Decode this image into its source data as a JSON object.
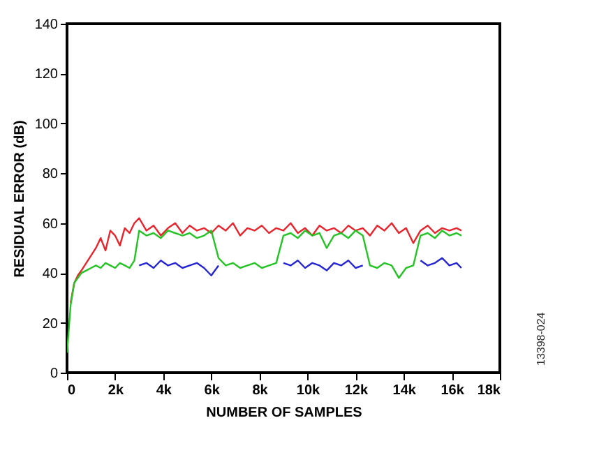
{
  "chart_data": {
    "type": "line",
    "xlabel": "NUMBER OF SAMPLES",
    "ylabel": "RESIDUAL ERROR (dB)",
    "x": [
      0,
      150,
      300,
      450,
      600,
      800,
      1000,
      1200,
      1400,
      1600,
      1800,
      2000,
      2200,
      2400,
      2600,
      2800,
      3000,
      3300,
      3600,
      3900,
      4200,
      4500,
      4800,
      5100,
      5400,
      5700,
      6000,
      6300,
      6600,
      6900,
      7200,
      7500,
      7800,
      8100,
      8400,
      8700,
      9000,
      9300,
      9600,
      9900,
      10200,
      10500,
      10800,
      11100,
      11400,
      11700,
      12000,
      12300,
      12600,
      12900,
      13200,
      13500,
      13800,
      14100,
      14400,
      14700,
      15000,
      15300,
      15600,
      15900,
      16200,
      16400
    ],
    "series": [
      {
        "color": "#2424d4",
        "values": [
          null,
          null,
          null,
          null,
          null,
          null,
          null,
          null,
          null,
          null,
          null,
          null,
          null,
          null,
          null,
          null,
          43,
          44,
          42,
          45,
          43,
          44,
          42,
          43,
          44,
          42,
          39,
          43,
          null,
          null,
          null,
          null,
          null,
          null,
          null,
          null,
          44,
          43,
          45,
          42,
          44,
          43,
          41,
          44,
          43,
          45,
          42,
          43,
          null,
          null,
          null,
          null,
          null,
          null,
          null,
          45,
          43,
          44,
          46,
          43,
          44,
          42
        ]
      },
      {
        "color": "#e8242c",
        "values": [
          null,
          28,
          36,
          39,
          41,
          44,
          47,
          50,
          54,
          49,
          57,
          55,
          51,
          58,
          56,
          60,
          62,
          57,
          59,
          55,
          58,
          60,
          56,
          59,
          57,
          58,
          56,
          59,
          57,
          60,
          55,
          58,
          57,
          59,
          56,
          58,
          57,
          60,
          56,
          58,
          55,
          59,
          57,
          58,
          56,
          59,
          57,
          58,
          55,
          59,
          57,
          60,
          56,
          58,
          52,
          57,
          59,
          56,
          58,
          57,
          58,
          57
        ]
      },
      {
        "color": "#24c424",
        "values": [
          8,
          27,
          36,
          38,
          40,
          41,
          42,
          43,
          42,
          44,
          43,
          42,
          44,
          43,
          42,
          45,
          57,
          55,
          56,
          54,
          57,
          56,
          55,
          56,
          54,
          55,
          57,
          46,
          43,
          44,
          42,
          43,
          44,
          42,
          43,
          44,
          55,
          56,
          54,
          57,
          55,
          56,
          50,
          55,
          56,
          54,
          57,
          55,
          43,
          42,
          44,
          43,
          38,
          42,
          43,
          55,
          56,
          54,
          57,
          55,
          56,
          55
        ]
      }
    ],
    "xlim": [
      0,
      18000
    ],
    "xticks": [
      0,
      {
        "value": 2000,
        "label": "2k"
      },
      {
        "value": 4000,
        "label": "4k"
      },
      {
        "value": 6000,
        "label": "6k"
      },
      {
        "value": 8000,
        "label": "8k"
      },
      {
        "value": 10000,
        "label": "10k"
      },
      {
        "value": 12000,
        "label": "12k"
      },
      {
        "value": 14000,
        "label": "14k"
      },
      {
        "value": 16000,
        "label": "16k"
      },
      {
        "value": 18000,
        "label": "18k"
      }
    ],
    "ylim": [
      0,
      140
    ],
    "yticks": [
      0,
      20,
      40,
      60,
      80,
      100,
      120,
      140
    ],
    "grid": false,
    "marker": "none",
    "line_style": "solid",
    "annotations": [
      "13398-024"
    ]
  }
}
